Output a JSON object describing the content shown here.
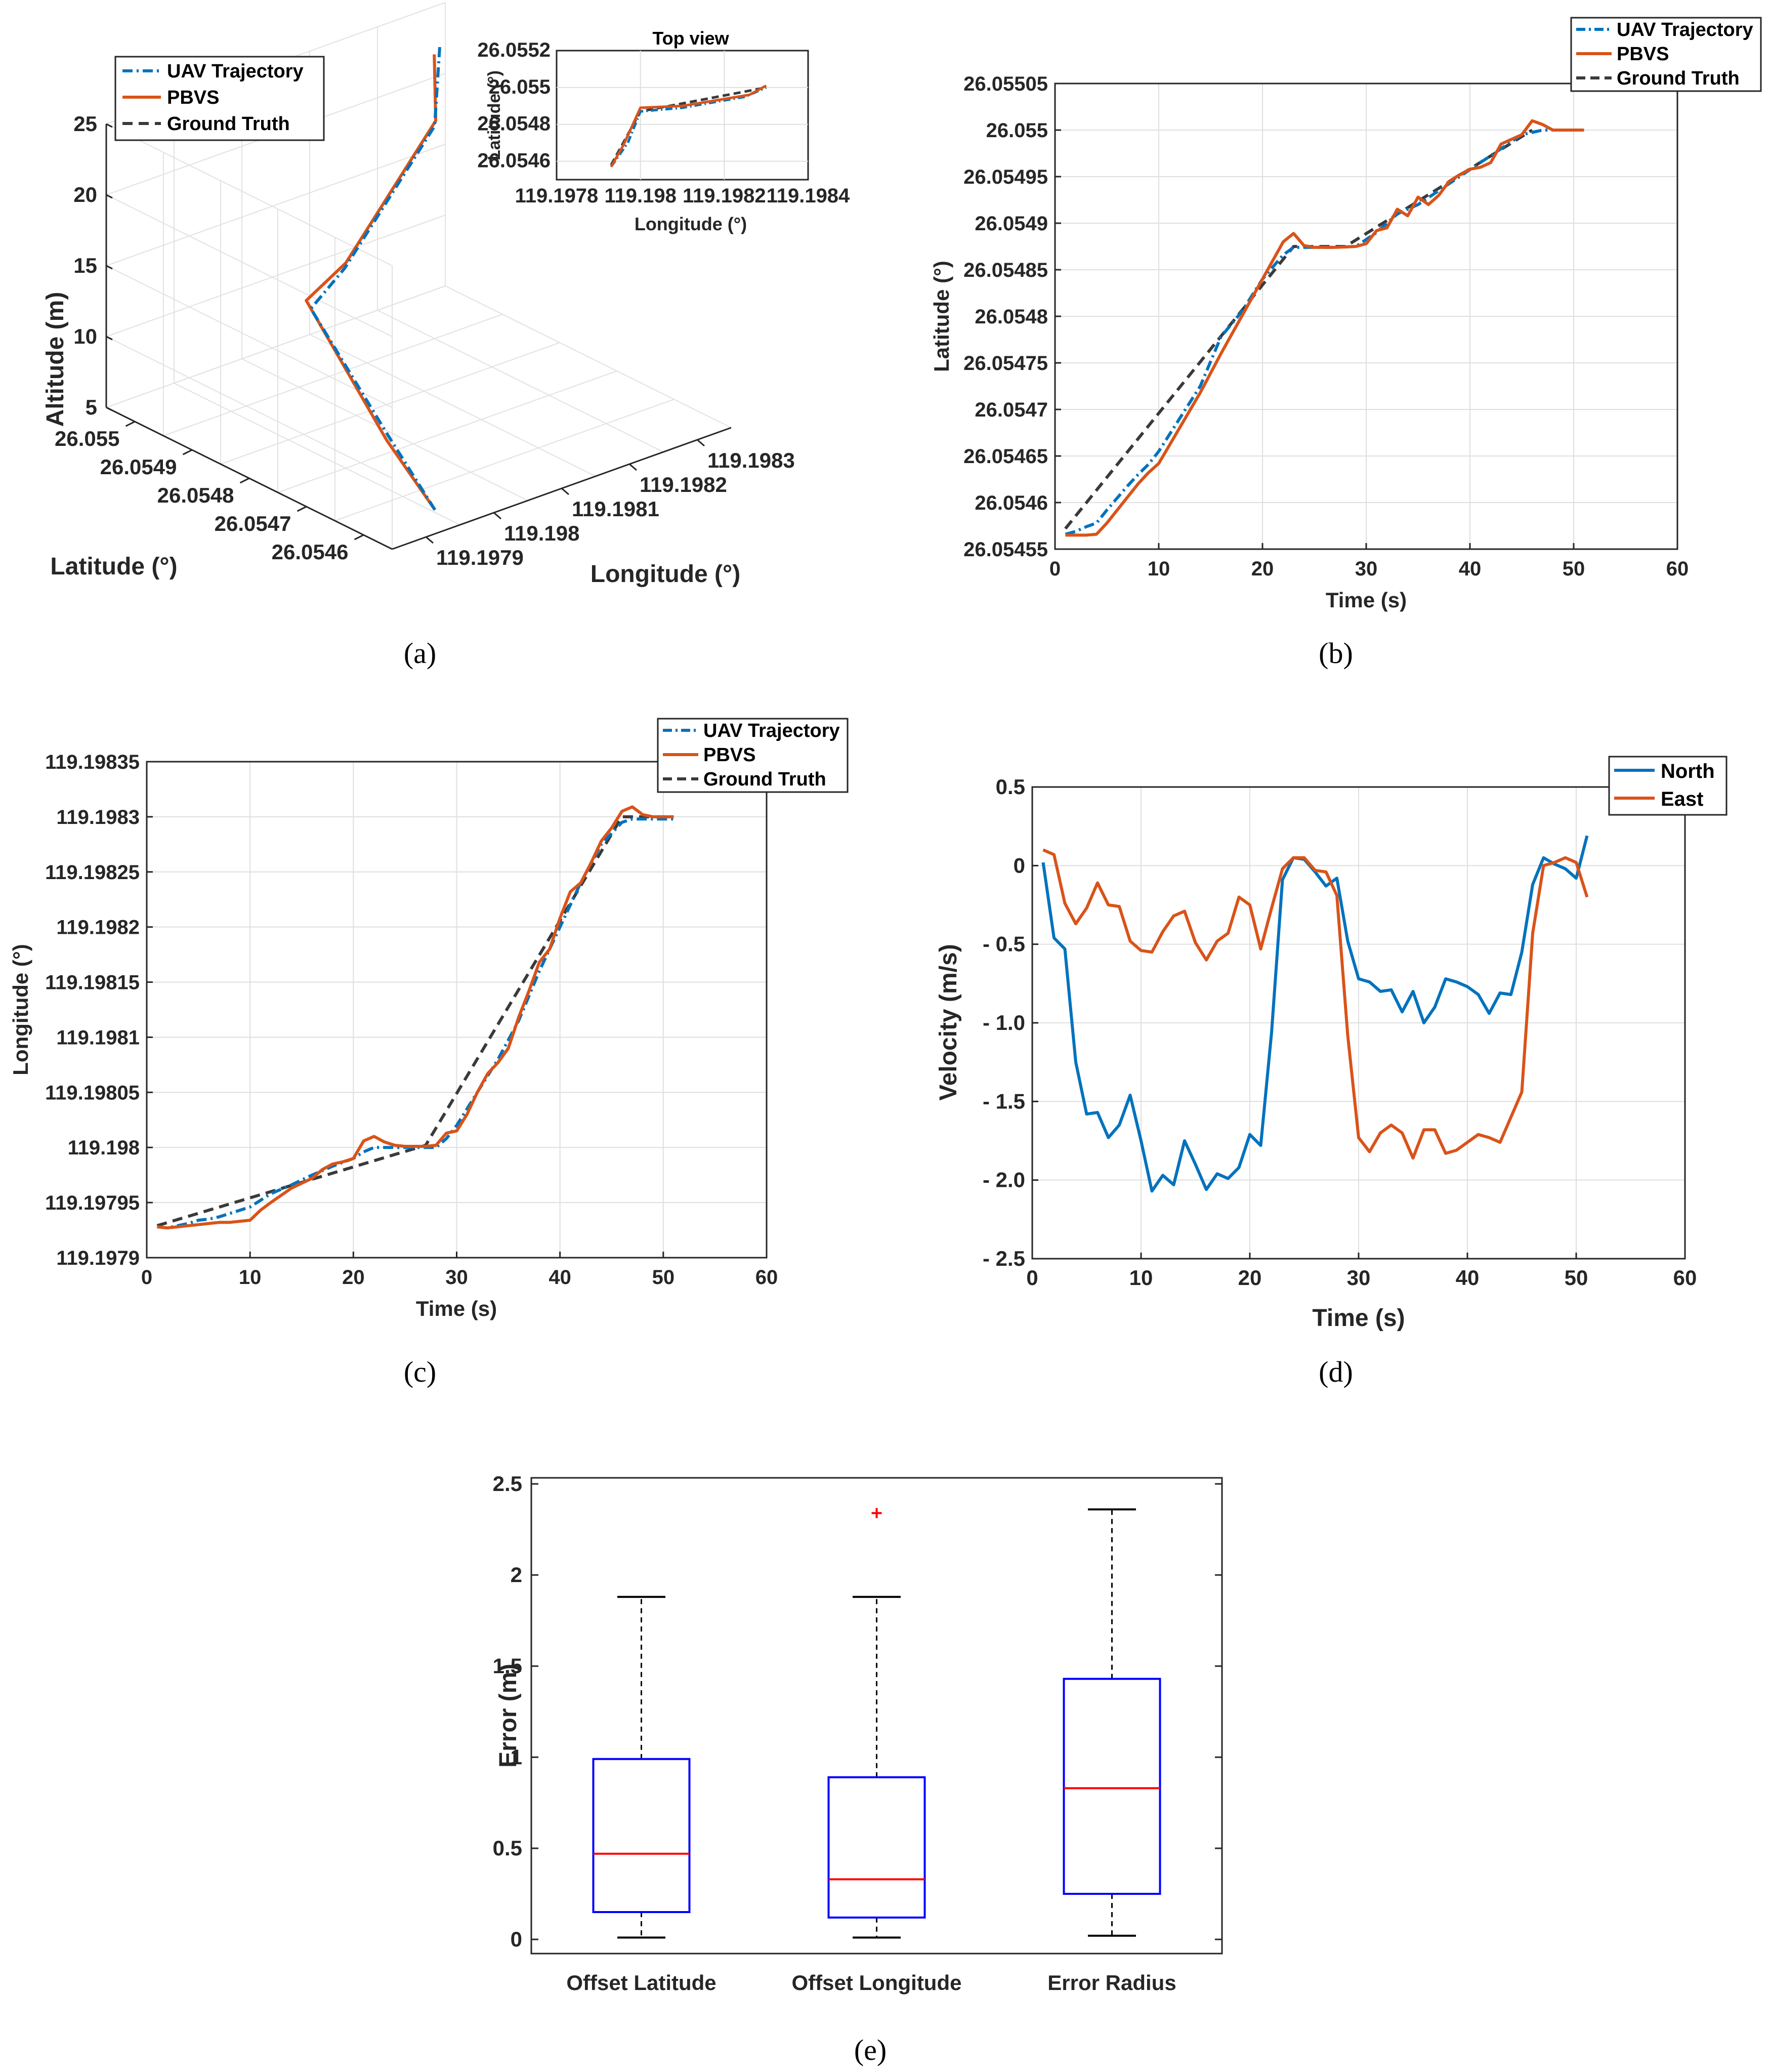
{
  "colors": {
    "uav": "#0072BD",
    "pbvs": "#D95319",
    "ground": "#3a3a3a",
    "north": "#0072BD",
    "east": "#D95319",
    "box": "#0000FF",
    "median": "#FF0000",
    "outlier": "#FF0000"
  },
  "captions": [
    "(a)",
    "(b)",
    "(c)",
    "(d)",
    "(e)"
  ],
  "chart_data": [
    {
      "id": "a",
      "type": "line3d",
      "xlabel": "Longitude (°)",
      "ylabel": "Latitude (°)",
      "zlabel": "Altitude (m)",
      "xticks": [
        "119.1979",
        "119.198",
        "119.1981",
        "119.1982",
        "119.1983"
      ],
      "yticks": [
        "26.0546",
        "26.0547",
        "26.0548",
        "26.0549",
        "26.055"
      ],
      "zticks": [
        "5",
        "10",
        "15",
        "20",
        "25"
      ],
      "legend": [
        "UAV Trajectory",
        "PBVS",
        "Ground Truth"
      ],
      "series": [
        {
          "name": "UAV Trajectory",
          "points": [
            [
              119.19793,
              26.05457,
              6
            ],
            [
              119.19797,
              26.0547,
              8
            ],
            [
              119.198,
              26.05487,
              13
            ],
            [
              119.19805,
              26.05487,
              15
            ],
            [
              119.19825,
              26.05495,
              20
            ],
            [
              119.1983,
              26.055,
              24
            ]
          ]
        },
        {
          "name": "PBVS",
          "points": [
            [
              119.19793,
              26.05457,
              6
            ],
            [
              119.19796,
              26.05469,
              8
            ],
            [
              119.19801,
              26.05489,
              13
            ],
            [
              119.19806,
              26.05488,
              15
            ],
            [
              119.19826,
              26.05496,
              20
            ],
            [
              119.1983,
              26.05501,
              23
            ]
          ]
        }
      ],
      "inset": {
        "title": "Top view",
        "xlabel": "Longitude (°)",
        "ylabel": "Latitude (°)",
        "xticks": [
          "119.1978",
          "119.198",
          "119.1982",
          "119.1984"
        ],
        "yticks": [
          "26.0546",
          "26.0548",
          "26.055",
          "26.0552"
        ],
        "xlim": [
          119.1978,
          119.1984
        ],
        "ylim": [
          26.0545,
          26.0552
        ],
        "uav": [
          [
            119.19793,
            26.05457
          ],
          [
            119.19797,
            26.0547
          ],
          [
            119.198,
            26.05487
          ],
          [
            119.1981,
            26.05489
          ],
          [
            119.19825,
            26.05495
          ],
          [
            119.1983,
            26.055
          ]
        ],
        "pbvs": [
          [
            119.19793,
            26.05457
          ],
          [
            119.19796,
            26.05469
          ],
          [
            119.198,
            26.05489
          ],
          [
            119.1981,
            26.0549
          ],
          [
            119.19826,
            26.05496
          ],
          [
            119.1983,
            26.05501
          ]
        ],
        "ground": [
          [
            119.19793,
            26.05458
          ],
          [
            119.198,
            26.05487
          ],
          [
            119.1983,
            26.055
          ]
        ]
      }
    },
    {
      "id": "b",
      "type": "line",
      "xlabel": "Time (s)",
      "ylabel": "Latitude (°)",
      "xlim": [
        0,
        60
      ],
      "ylim": [
        26.05455,
        26.05505
      ],
      "xticks": [
        "0",
        "10",
        "20",
        "30",
        "40",
        "50",
        "60"
      ],
      "yticks": [
        "26.05455",
        "26.0546",
        "26.05465",
        "26.0547",
        "26.05475",
        "26.0548",
        "26.05485",
        "26.0549",
        "26.05495",
        "26.055",
        "26.05505"
      ],
      "legend": [
        "UAV Trajectory",
        "PBVS",
        "Ground Truth"
      ],
      "series": [
        {
          "name": "UAV Trajectory",
          "x": [
            1,
            2,
            3,
            4,
            5,
            6,
            7,
            8,
            9,
            10,
            12,
            14,
            16,
            18,
            20,
            22,
            23,
            25,
            27,
            29,
            31,
            33,
            35,
            37,
            39,
            41,
            43,
            45,
            47,
            49,
            51
          ],
          "y": [
            26.054566,
            26.054569,
            26.054574,
            26.054578,
            26.054592,
            26.054605,
            26.054618,
            26.05463,
            26.054641,
            26.054655,
            26.05469,
            26.054725,
            26.054778,
            26.054805,
            26.05484,
            26.054866,
            26.054874,
            26.054874,
            26.054874,
            26.054875,
            26.05489,
            26.05491,
            26.05492,
            26.054935,
            26.05495,
            26.054965,
            26.05498,
            26.054995,
            26.055,
            26.055,
            26.055
          ]
        },
        {
          "name": "PBVS",
          "x": [
            1,
            2,
            3,
            4,
            5,
            6,
            7,
            8,
            9,
            10,
            12,
            14,
            16,
            18,
            20,
            21,
            22,
            23,
            24,
            25,
            27,
            29,
            30,
            31,
            32,
            33,
            34,
            35,
            36,
            37,
            38,
            39,
            40,
            41,
            42,
            43,
            44,
            45,
            46,
            47,
            48,
            49,
            50,
            51
          ],
          "y": [
            26.054565,
            26.054565,
            26.054565,
            26.054566,
            26.054578,
            26.054592,
            26.054606,
            26.05462,
            26.054632,
            26.054642,
            26.05468,
            26.054718,
            26.05476,
            26.0548,
            26.05484,
            26.05486,
            26.05488,
            26.054889,
            26.054876,
            26.054874,
            26.054874,
            26.054875,
            26.054878,
            26.054892,
            26.054895,
            26.054915,
            26.054908,
            26.054928,
            26.05492,
            26.05493,
            26.054945,
            26.054952,
            26.054958,
            26.05496,
            26.054965,
            26.054985,
            26.05499,
            26.054995,
            26.05501,
            26.055006,
            26.055,
            26.055,
            26.055,
            26.055
          ]
        },
        {
          "name": "Ground Truth",
          "x": [
            1,
            23,
            28,
            46
          ],
          "y": [
            26.054572,
            26.054875,
            26.054875,
            26.055
          ]
        }
      ]
    },
    {
      "id": "c",
      "type": "line",
      "xlabel": "Time (s)",
      "ylabel": "Longitude (°)",
      "xlim": [
        0,
        60
      ],
      "ylim": [
        119.1979,
        119.19835
      ],
      "xticks": [
        "0",
        "10",
        "20",
        "30",
        "40",
        "50",
        "60"
      ],
      "yticks": [
        "119.1979",
        "119.19795",
        "119.198",
        "119.19805",
        "119.1981",
        "119.19815",
        "119.1982",
        "119.19825",
        "119.1983",
        "119.19835"
      ],
      "legend": [
        "UAV Trajectory",
        "PBVS",
        "Ground Truth"
      ],
      "series": [
        {
          "name": "UAV Trajectory",
          "x": [
            1,
            2,
            3,
            4,
            5,
            6,
            7,
            8,
            9,
            10,
            11,
            12,
            14,
            16,
            18,
            20,
            21,
            22,
            23,
            24,
            25,
            26,
            27,
            28,
            29,
            30,
            32,
            34,
            36,
            38,
            40,
            42,
            44,
            46,
            47,
            48,
            49,
            50,
            51
          ],
          "y": [
            119.197928,
            119.197927,
            119.197929,
            119.197931,
            119.197934,
            119.197935,
            119.197937,
            119.19794,
            119.197943,
            119.197946,
            119.197952,
            119.197958,
            119.197966,
            119.197975,
            119.197983,
            119.19799,
            119.197996,
            119.198,
            119.198,
            119.198,
            119.198,
            119.198,
            119.198,
            119.198,
            119.198008,
            119.19802,
            119.19805,
            119.19808,
            119.198115,
            119.19816,
            119.1982,
            119.19824,
            119.198275,
            119.198295,
            119.198298,
            119.198298,
            119.198298,
            119.198298,
            119.198298
          ]
        },
        {
          "name": "PBVS",
          "x": [
            1,
            2,
            3,
            4,
            5,
            6,
            7,
            8,
            9,
            10,
            11,
            12,
            14,
            16,
            17,
            18,
            19,
            20,
            21,
            22,
            23,
            24,
            25,
            26,
            27,
            28,
            29,
            30,
            31,
            32,
            33,
            34,
            35,
            36,
            37,
            38,
            39,
            40,
            41,
            42,
            43,
            44,
            45,
            46,
            47,
            48,
            49,
            50,
            51
          ],
          "y": [
            119.197928,
            119.197927,
            119.197928,
            119.197929,
            119.19793,
            119.197931,
            119.197932,
            119.197932,
            119.197933,
            119.197934,
            119.197943,
            119.19795,
            119.197963,
            119.197972,
            119.19798,
            119.197985,
            119.197987,
            119.19799,
            119.198006,
            119.19801,
            119.198005,
            119.198002,
            119.198001,
            119.198001,
            119.198001,
            119.198002,
            119.198013,
            119.198015,
            119.19803,
            119.19805,
            119.198067,
            119.198077,
            119.19809,
            119.198118,
            119.198142,
            119.198168,
            119.19818,
            119.198208,
            119.198232,
            119.19824,
            119.198258,
            119.198278,
            119.19829,
            119.198305,
            119.198309,
            119.198302,
            119.1983,
            119.1983,
            119.1983
          ]
        },
        {
          "name": "Ground Truth",
          "x": [
            1,
            27,
            46,
            51
          ],
          "y": [
            119.197929,
            119.198002,
            119.1983,
            119.1983
          ]
        }
      ]
    },
    {
      "id": "d",
      "type": "line",
      "xlabel": "Time (s)",
      "ylabel": "Velocity (m/s)",
      "xlim": [
        0,
        60
      ],
      "ylim": [
        -2.5,
        0.5
      ],
      "xticks": [
        "0",
        "10",
        "20",
        "30",
        "40",
        "50",
        "60"
      ],
      "yticks": [
        "- 2.5",
        "- 2.0",
        "- 1.5",
        "- 1.0",
        "- 0.5",
        "0",
        "0.5"
      ],
      "legend": [
        "North",
        "East"
      ],
      "series": [
        {
          "name": "North",
          "x": [
            1,
            2,
            3,
            4,
            5,
            6,
            7,
            8,
            9,
            10,
            11,
            12,
            13,
            14,
            15,
            16,
            17,
            18,
            19,
            20,
            21,
            22,
            23,
            24,
            25,
            26,
            27,
            28,
            29,
            30,
            31,
            32,
            33,
            34,
            35,
            36,
            37,
            38,
            39,
            40,
            41,
            42,
            43,
            44,
            45,
            46,
            47,
            48,
            49,
            50,
            51
          ],
          "y": [
            0.02,
            -0.46,
            -0.53,
            -1.25,
            -1.58,
            -1.57,
            -1.73,
            -1.65,
            -1.46,
            -1.75,
            -2.07,
            -1.97,
            -2.03,
            -1.75,
            -1.9,
            -2.06,
            -1.96,
            -1.99,
            -1.92,
            -1.71,
            -1.78,
            -1.06,
            -0.09,
            0.05,
            0.04,
            -0.04,
            -0.13,
            -0.08,
            -0.48,
            -0.72,
            -0.74,
            -0.8,
            -0.79,
            -0.93,
            -0.8,
            -1.0,
            -0.9,
            -0.72,
            -0.74,
            -0.77,
            -0.82,
            -0.94,
            -0.81,
            -0.82,
            -0.55,
            -0.12,
            0.05,
            0.01,
            -0.02,
            -0.08,
            0.19
          ]
        },
        {
          "name": "East",
          "x": [
            1,
            2,
            3,
            4,
            5,
            6,
            7,
            8,
            9,
            10,
            11,
            12,
            13,
            14,
            15,
            16,
            17,
            18,
            19,
            20,
            21,
            22,
            23,
            24,
            25,
            26,
            27,
            28,
            29,
            30,
            31,
            32,
            33,
            34,
            35,
            36,
            37,
            38,
            39,
            40,
            41,
            42,
            43,
            44,
            45,
            46,
            47,
            48,
            49,
            50,
            51
          ],
          "y": [
            0.1,
            0.07,
            -0.24,
            -0.37,
            -0.27,
            -0.11,
            -0.25,
            -0.26,
            -0.48,
            -0.54,
            -0.55,
            -0.42,
            -0.32,
            -0.29,
            -0.49,
            -0.6,
            -0.48,
            -0.43,
            -0.2,
            -0.25,
            -0.53,
            -0.27,
            -0.02,
            0.05,
            0.05,
            -0.03,
            -0.04,
            -0.19,
            -1.08,
            -1.73,
            -1.82,
            -1.7,
            -1.65,
            -1.7,
            -1.86,
            -1.68,
            -1.68,
            -1.83,
            -1.81,
            -1.76,
            -1.71,
            -1.73,
            -1.76,
            -1.6,
            -1.44,
            -0.43,
            0.0,
            0.02,
            0.05,
            0.02,
            -0.2
          ]
        }
      ]
    },
    {
      "id": "e",
      "type": "box",
      "ylabel": "Error (m)",
      "ylim": [
        0,
        2.5
      ],
      "yticks": [
        "0",
        "0.5",
        "1",
        "1.5",
        "2",
        "2.5"
      ],
      "categories": [
        "Offset Latitude",
        "Offset Longitude",
        "Error Radius"
      ],
      "boxes": [
        {
          "label": "Offset Latitude",
          "min": 0.01,
          "q1": 0.15,
          "median": 0.47,
          "q3": 0.99,
          "max": 1.88,
          "outliers": []
        },
        {
          "label": "Offset Longitude",
          "min": 0.01,
          "q1": 0.12,
          "median": 0.33,
          "q3": 0.89,
          "max": 1.88,
          "outliers": [
            2.34
          ]
        },
        {
          "label": "Error Radius",
          "min": 0.02,
          "q1": 0.25,
          "median": 0.83,
          "q3": 1.43,
          "max": 2.36,
          "outliers": []
        }
      ]
    }
  ]
}
